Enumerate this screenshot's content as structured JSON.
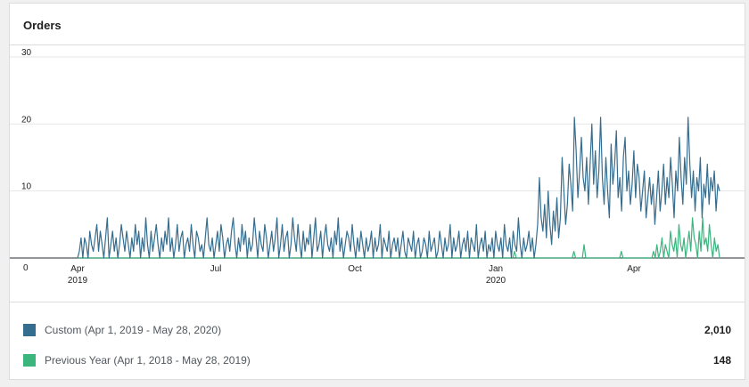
{
  "header": {
    "title": "Orders"
  },
  "legend": {
    "items": [
      {
        "label": "Custom (Apr 1, 2019 - May 28, 2020)",
        "total": "2,010",
        "color": "#356d8f"
      },
      {
        "label": "Previous Year (Apr 1, 2018 - May 28, 2019)",
        "total": "148",
        "color": "#3ab57e"
      }
    ]
  },
  "chart_data": {
    "type": "line",
    "ylim": [
      0,
      30
    ],
    "y_ticks": [
      "0",
      "10",
      "20",
      "30"
    ],
    "x_ticks": [
      {
        "label": "Apr",
        "sub": "2019"
      },
      {
        "label": "Jul",
        "sub": ""
      },
      {
        "label": "Oct",
        "sub": ""
      },
      {
        "label": "Jan",
        "sub": "2020"
      },
      {
        "label": "Apr",
        "sub": ""
      }
    ],
    "grid": true,
    "legend_position": "bottom",
    "series": [
      {
        "name": "Custom (Apr 1, 2019 - May 28, 2020)",
        "color": "#356d8f",
        "values": [
          0,
          1,
          3,
          0,
          3,
          2,
          0,
          4,
          2,
          1,
          3,
          5,
          1,
          4,
          2,
          0,
          3,
          6,
          0,
          2,
          4,
          1,
          3,
          0,
          2,
          5,
          3,
          1,
          4,
          2,
          0,
          3,
          1,
          5,
          2,
          4,
          0,
          3,
          1,
          6,
          2,
          0,
          4,
          1,
          3,
          5,
          2,
          0,
          3,
          1,
          4,
          2,
          6,
          1,
          3,
          0,
          2,
          5,
          1,
          3,
          4,
          0,
          2,
          3,
          1,
          5,
          2,
          0,
          4,
          3,
          1,
          2,
          0,
          3,
          6,
          2,
          1,
          3,
          0,
          2,
          4,
          1,
          5,
          3,
          0,
          2,
          3,
          1,
          4,
          6,
          2,
          0,
          3,
          1,
          5,
          2,
          4,
          0,
          3,
          1,
          2,
          6,
          3,
          0,
          4,
          2,
          1,
          5,
          3,
          0,
          2,
          4,
          1,
          3,
          6,
          0,
          2,
          5,
          1,
          3,
          4,
          0,
          2,
          6,
          3,
          1,
          5,
          2,
          0,
          4,
          1,
          3,
          2,
          5,
          0,
          3,
          6,
          1,
          2,
          4,
          0,
          3,
          5,
          2,
          1,
          3,
          0,
          4,
          2,
          6,
          1,
          3,
          0,
          2,
          4,
          3,
          1,
          5,
          2,
          0,
          3,
          1,
          4,
          2,
          0,
          3,
          1,
          2,
          4,
          0,
          3,
          1,
          2,
          5,
          0,
          3,
          2,
          1,
          4,
          0,
          2,
          3,
          1,
          3,
          0,
          2,
          4,
          1,
          0,
          3,
          2,
          1,
          4,
          0,
          2,
          3,
          0,
          1,
          3,
          2,
          0,
          4,
          1,
          2,
          3,
          0,
          1,
          4,
          2,
          0,
          3,
          1,
          2,
          5,
          0,
          3,
          1,
          2,
          4,
          0,
          2,
          3,
          1,
          4,
          0,
          3,
          2,
          1,
          5,
          0,
          2,
          3,
          1,
          4,
          0,
          2,
          1,
          3,
          0,
          4,
          2,
          1,
          3,
          0,
          5,
          2,
          1,
          3,
          0,
          4,
          2,
          1,
          6,
          2,
          0,
          3,
          1,
          2,
          4,
          1,
          3,
          0,
          2,
          5,
          12,
          6,
          4,
          8,
          3,
          10,
          5,
          2,
          7,
          4,
          9,
          3,
          6,
          15,
          10,
          5,
          8,
          14,
          11,
          7,
          21,
          16,
          9,
          13,
          18,
          12,
          10,
          15,
          8,
          14,
          20,
          11,
          16,
          9,
          13,
          21,
          12,
          8,
          15,
          10,
          6,
          17,
          11,
          14,
          19,
          9,
          12,
          7,
          15,
          18,
          10,
          13,
          8,
          11,
          16,
          9,
          14,
          12,
          7,
          10,
          13,
          6,
          9,
          12,
          8,
          11,
          5,
          9,
          13,
          7,
          10,
          14,
          8,
          12,
          9,
          15,
          11,
          6,
          13,
          10,
          18,
          12,
          8,
          15,
          11,
          21,
          14,
          9,
          13,
          7,
          12,
          10,
          15,
          6,
          11,
          9,
          14,
          8,
          12,
          10,
          13,
          7,
          11,
          10
        ]
      },
      {
        "name": "Previous Year (Apr 1, 2018 - May 28, 2019)",
        "color": "#3ab57e",
        "values": [
          0,
          0,
          0,
          0,
          0,
          0,
          0,
          0,
          0,
          0,
          0,
          0,
          0,
          0,
          0,
          0,
          0,
          0,
          0,
          0,
          0,
          0,
          0,
          0,
          0,
          0,
          0,
          0,
          0,
          0,
          0,
          0,
          0,
          0,
          0,
          0,
          0,
          0,
          0,
          0,
          0,
          0,
          0,
          0,
          0,
          0,
          0,
          0,
          0,
          0,
          0,
          0,
          0,
          0,
          0,
          0,
          0,
          0,
          0,
          0,
          0,
          0,
          0,
          0,
          0,
          0,
          0,
          0,
          0,
          0,
          0,
          0,
          0,
          0,
          0,
          0,
          0,
          0,
          0,
          0,
          0,
          0,
          0,
          0,
          0,
          0,
          0,
          0,
          0,
          0,
          0,
          0,
          0,
          0,
          0,
          0,
          0,
          0,
          0,
          0,
          0,
          0,
          0,
          0,
          0,
          0,
          0,
          0,
          0,
          0,
          0,
          0,
          0,
          0,
          0,
          0,
          0,
          0,
          0,
          0,
          0,
          0,
          0,
          0,
          0,
          0,
          0,
          0,
          0,
          0,
          0,
          0,
          0,
          0,
          0,
          0,
          0,
          0,
          0,
          0,
          0,
          0,
          0,
          0,
          0,
          0,
          0,
          0,
          0,
          0,
          0,
          0,
          0,
          0,
          0,
          0,
          0,
          0,
          0,
          0,
          0,
          0,
          0,
          0,
          0,
          0,
          0,
          0,
          0,
          0,
          0,
          0,
          0,
          0,
          0,
          0,
          0,
          0,
          0,
          0,
          0,
          0,
          0,
          0,
          0,
          0,
          0,
          0,
          0,
          0,
          0,
          0,
          0,
          0,
          0,
          0,
          0,
          0,
          0,
          0,
          0,
          0,
          0,
          0,
          0,
          0,
          0,
          0,
          0,
          0,
          0,
          0,
          0,
          0,
          0,
          0,
          0,
          0,
          0,
          0,
          0,
          0,
          0,
          0,
          0,
          0,
          0,
          0,
          0,
          0,
          0,
          0,
          0,
          0,
          0,
          0,
          0,
          0,
          0,
          0,
          0,
          0,
          0,
          0,
          0,
          0,
          0,
          0,
          0,
          0,
          0,
          0,
          0,
          0,
          0,
          0,
          0,
          0,
          1,
          0,
          0,
          0,
          0,
          0,
          0,
          0,
          0,
          0,
          0,
          0,
          0,
          0,
          0,
          0,
          0,
          0,
          0,
          0,
          0,
          0,
          0,
          0,
          0,
          0,
          0,
          0,
          0,
          0,
          0,
          0,
          0,
          0,
          0,
          1,
          0,
          0,
          0,
          0,
          0,
          2,
          0,
          0,
          0,
          0,
          0,
          0,
          0,
          0,
          0,
          0,
          0,
          0,
          0,
          0,
          0,
          0,
          0,
          0,
          0,
          0,
          0,
          1,
          0,
          0,
          0,
          0,
          0,
          0,
          0,
          0,
          0,
          0,
          0,
          0,
          0,
          0,
          0,
          0,
          0,
          0,
          1,
          0,
          2,
          0,
          1,
          3,
          0,
          2,
          1,
          0,
          4,
          2,
          1,
          3,
          0,
          5,
          2,
          1,
          3,
          0,
          2,
          4,
          1,
          6,
          3,
          2,
          0,
          4,
          1,
          6,
          2,
          3,
          1,
          5,
          2,
          0,
          3,
          1,
          2,
          0
        ]
      }
    ]
  }
}
